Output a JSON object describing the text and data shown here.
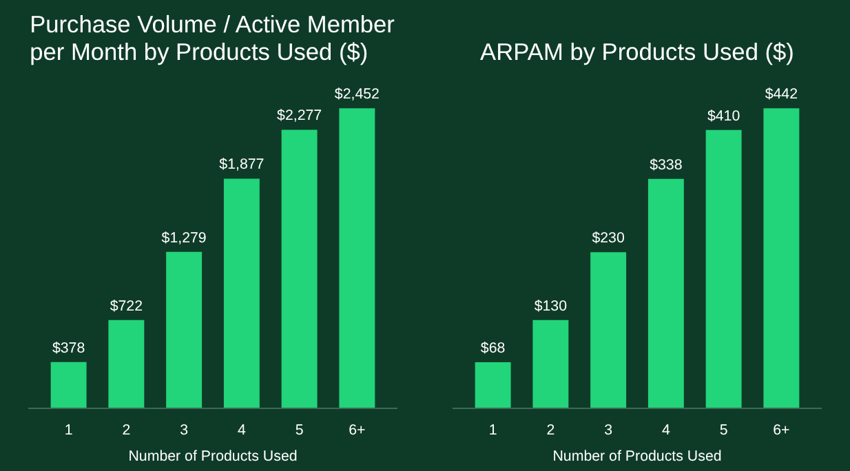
{
  "chart_data": [
    {
      "type": "bar",
      "title": "Purchase Volume / Active Member per Month by Products Used ($)",
      "xlabel": "Number of Products Used",
      "categories": [
        "1",
        "2",
        "3",
        "4",
        "5",
        "6+"
      ],
      "color": "#22d47a",
      "values": [
        378,
        722,
        1279,
        1877,
        2277,
        2452
      ],
      "value_labels": [
        "$378",
        "$722",
        "$1,279",
        "$1,877",
        "$2,277",
        "$2,452"
      ]
    },
    {
      "type": "bar",
      "title": "ARPAM by Products Used ($)",
      "xlabel": "Number of Products Used",
      "categories": [
        "1",
        "2",
        "3",
        "4",
        "5",
        "6+"
      ],
      "color": "#22d47a",
      "values": [
        68,
        130,
        230,
        338,
        410,
        442
      ],
      "value_labels": [
        "$68",
        "$130",
        "$230",
        "$338",
        "$410",
        "$442"
      ]
    }
  ]
}
